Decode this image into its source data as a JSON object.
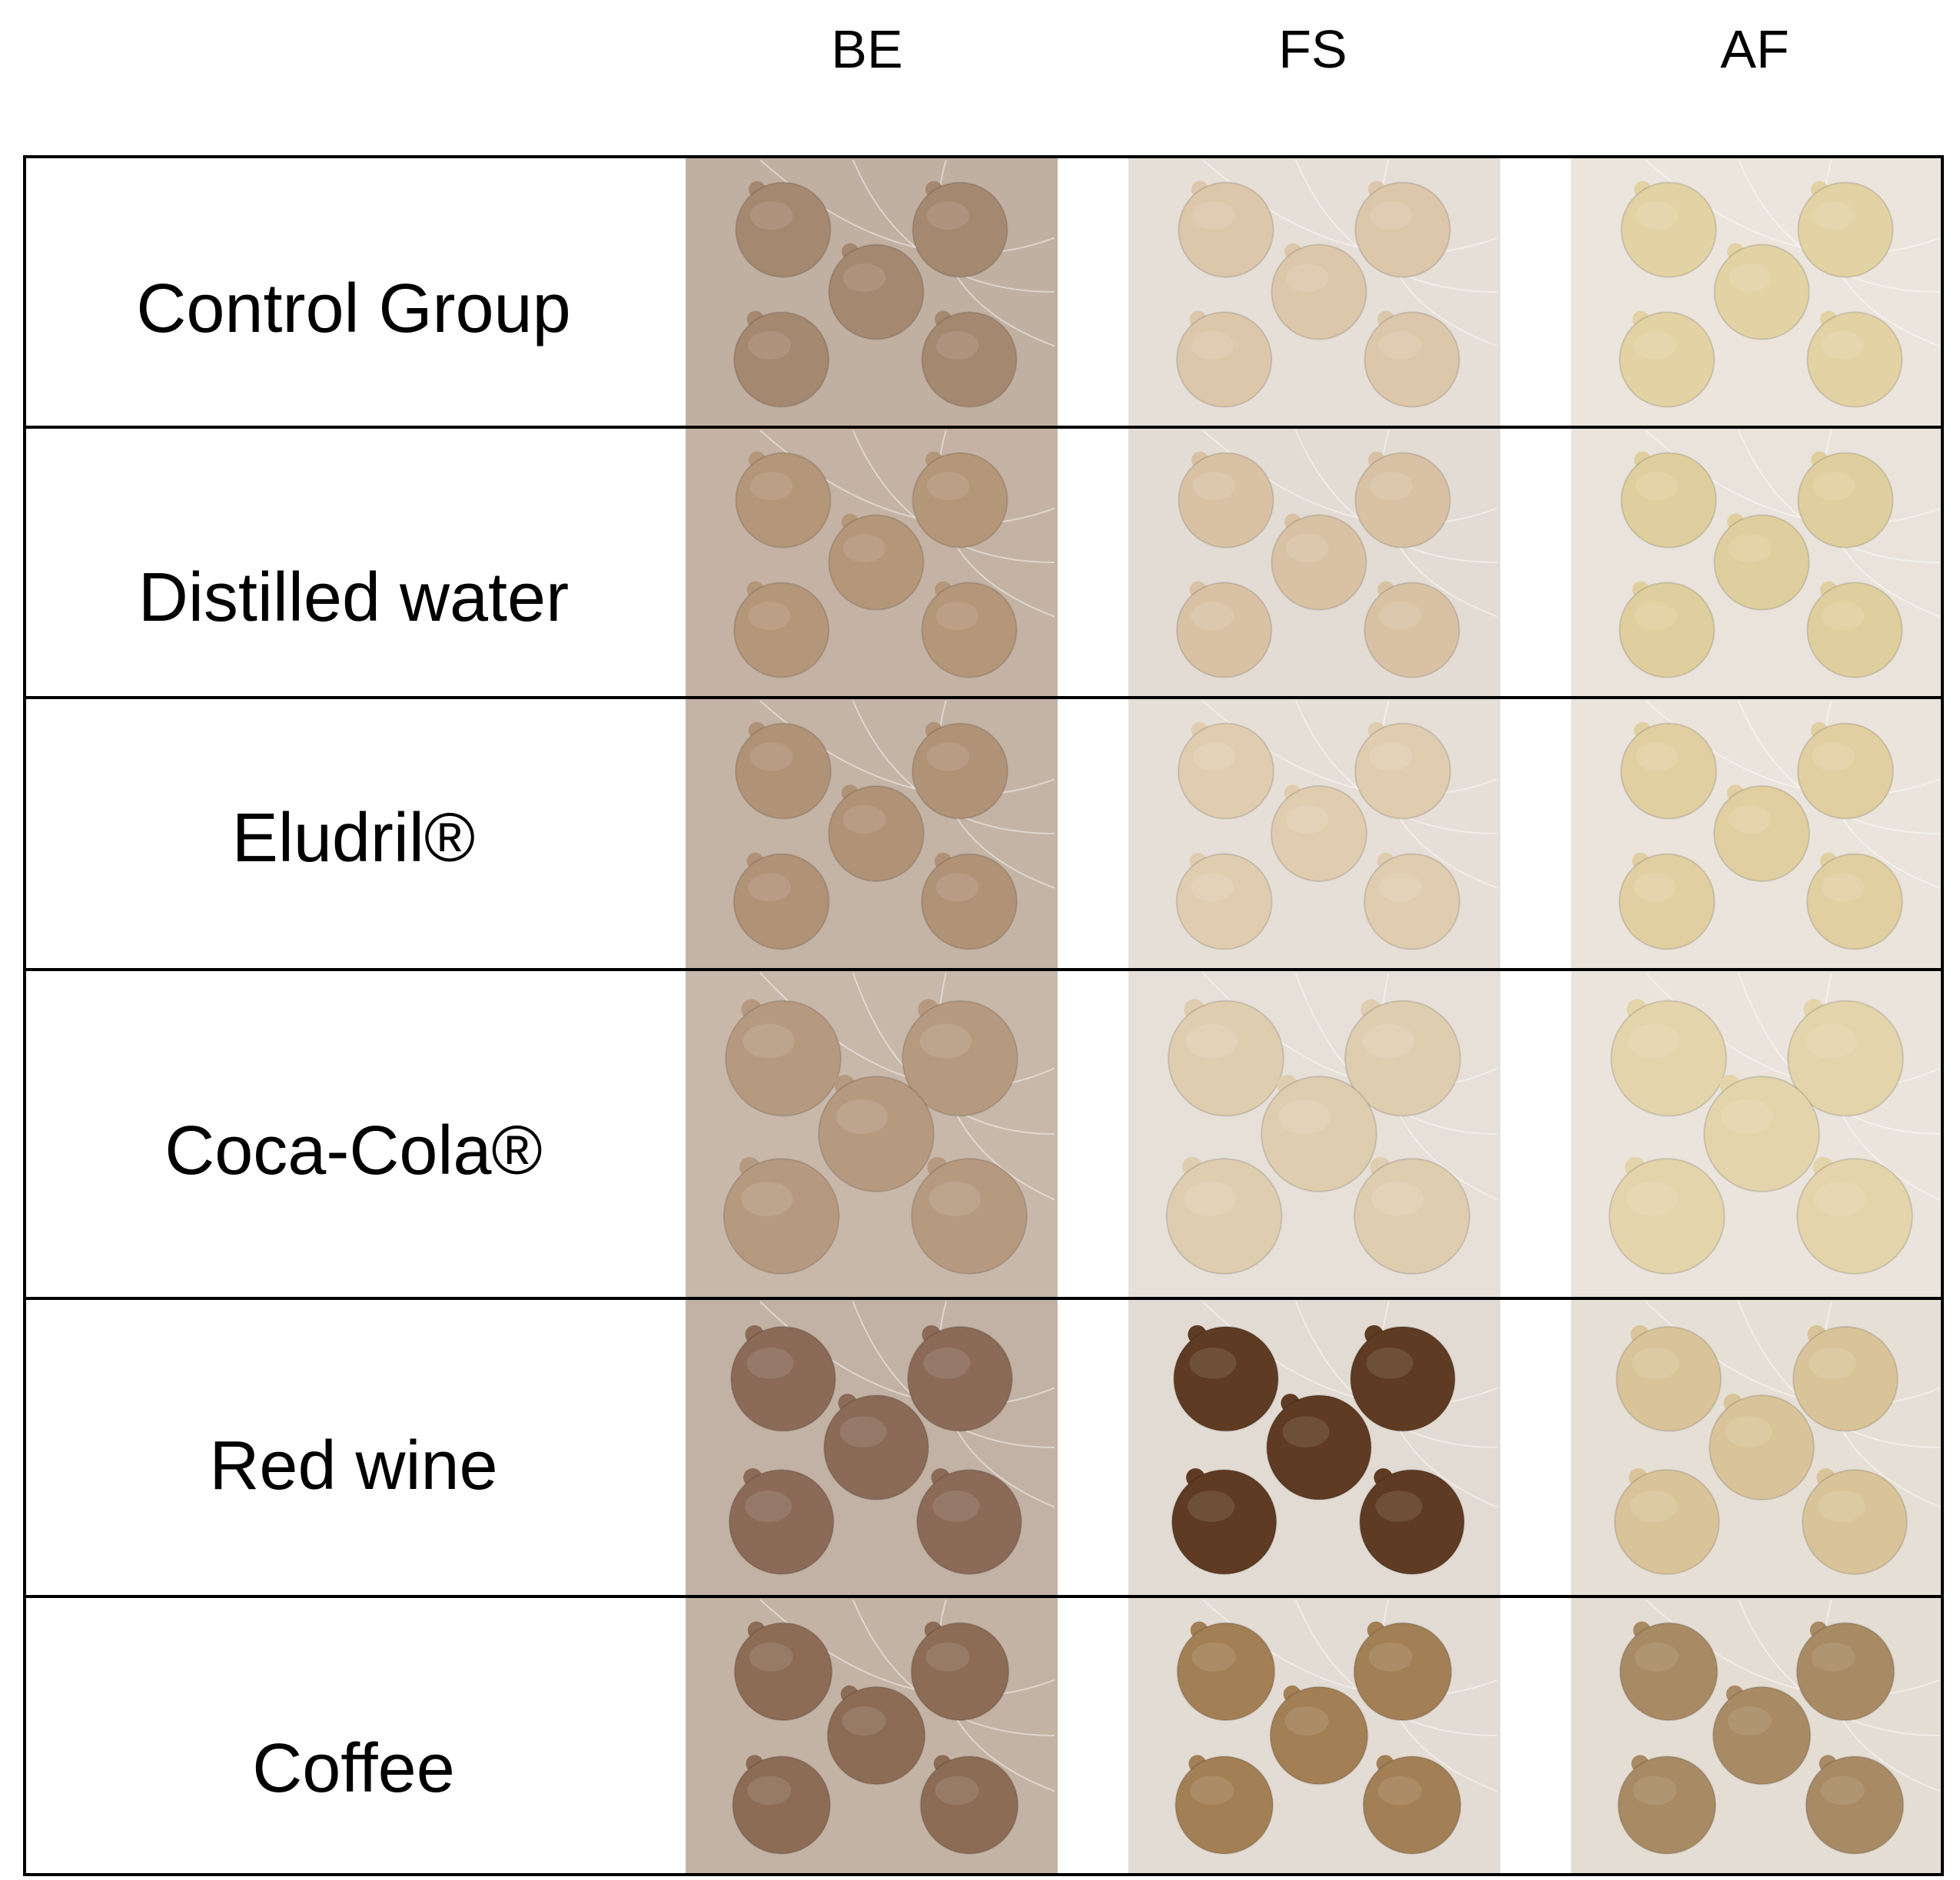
{
  "columns": [
    {
      "label": "BE",
      "panel_bg": "#c2b2a4",
      "disc_colors": [
        "#a98a70",
        "#a98a70",
        "#a98a70",
        "#a98a70",
        "#a98a70"
      ]
    },
    {
      "label": "FS",
      "panel_bg": "#e5ded7",
      "disc_colors": [
        "#dcc7ab",
        "#dcc7ab",
        "#dcc7ab",
        "#dcc7ab",
        "#dcc7ab"
      ]
    },
    {
      "label": "AF",
      "panel_bg": "#e9e3dd",
      "disc_colors": [
        "#e3d3a6",
        "#e3d3a6",
        "#e3d3a6",
        "#e3d3a6",
        "#e3d3a6"
      ]
    }
  ],
  "rows": [
    {
      "label": "Control Group",
      "cells": [
        {
          "bg": "#c0b0a2",
          "disc": "#a58870"
        },
        {
          "bg": "#e6dfd8",
          "disc": "#dcc7aa"
        },
        {
          "bg": "#ebe5dd",
          "disc": "#e2d2a4"
        }
      ]
    },
    {
      "label": "Distilled water",
      "cells": [
        {
          "bg": "#c4b3a4",
          "disc": "#b49679"
        },
        {
          "bg": "#e3dcd4",
          "disc": "#d9c2a4"
        },
        {
          "bg": "#e9e3dc",
          "disc": "#e0cf9e"
        }
      ]
    },
    {
      "label": "Eludril®",
      "cells": [
        {
          "bg": "#c4b4a6",
          "disc": "#b09276"
        },
        {
          "bg": "#e6dfd7",
          "disc": "#e0cdb0"
        },
        {
          "bg": "#eae4dc",
          "disc": "#e1cfa2"
        }
      ]
    },
    {
      "label": "Coca-Cola®",
      "cells": [
        {
          "bg": "#c8b8aa",
          "disc": "#b69a80"
        },
        {
          "bg": "#e6e0d9",
          "disc": "#dfcdb0"
        },
        {
          "bg": "#eae4dd",
          "disc": "#e3d4ab"
        }
      ]
    },
    {
      "label": "Red wine",
      "cells": [
        {
          "bg": "#c2b2a5",
          "disc": "#8b6a58"
        },
        {
          "bg": "#e2dbd3",
          "disc": "#5e3b22"
        },
        {
          "bg": "#e6dfd6",
          "disc": "#d9c499"
        }
      ]
    },
    {
      "label": "Coffee",
      "cells": [
        {
          "bg": "#c3b3a5",
          "disc": "#8c6c55"
        },
        {
          "bg": "#e3dcd4",
          "disc": "#a27f55"
        },
        {
          "bg": "#e4ddd4",
          "disc": "#a88a64"
        }
      ]
    }
  ]
}
